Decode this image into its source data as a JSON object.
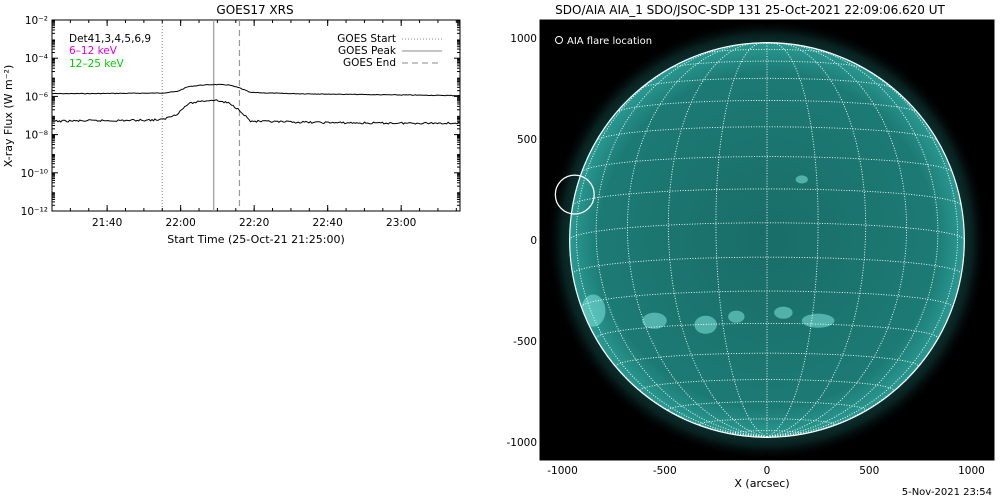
{
  "stamp": "5-Nov-2021 23:54",
  "chart_data": [
    {
      "type": "line",
      "title": "GOES17 XRS",
      "xlabel": "Start Time (25-Oct-21 21:25:00)",
      "ylabel": "X-ray Flux (W m⁻²)",
      "yscale": "log",
      "ylim": [
        "1e-12",
        "1e-2"
      ],
      "xlim": [
        "21:25",
        "23:16"
      ],
      "x_ticks": [
        "21:40",
        "22:00",
        "22:20",
        "22:40",
        "23:00"
      ],
      "y_ticks": [
        {
          "value": "1e-2",
          "label": "10⁻²"
        },
        {
          "value": "1e-4",
          "label": "10⁻⁴"
        },
        {
          "value": "1e-6",
          "label": "10⁻⁶"
        },
        {
          "value": "1e-8",
          "label": "10⁻⁸"
        },
        {
          "value": "1e-10",
          "label": "10⁻¹⁰"
        },
        {
          "value": "1e-12",
          "label": "10⁻¹²"
        }
      ],
      "grid": false,
      "annotations": {
        "detectors": "Det41,3,4,5,6,9",
        "band_low": "6–12 keV",
        "band_high": "12–25 keV",
        "band_low_color": "#e000e0",
        "band_high_color": "#00cc00"
      },
      "legend": {
        "placement": "top-right",
        "entries": [
          {
            "label": "GOES Start",
            "style": "dotted",
            "time": "21:55"
          },
          {
            "label": "GOES Peak",
            "style": "solid",
            "time": "22:09"
          },
          {
            "label": "GOES End",
            "style": "dashed",
            "time": "22:16"
          }
        ]
      },
      "series": [
        {
          "color": "#000000",
          "points": [
            [
              "21:25",
              "1.4e-6"
            ],
            [
              "21:35",
              "1.4e-6"
            ],
            [
              "21:45",
              "1.45e-6"
            ],
            [
              "21:55",
              "1.5e-6"
            ],
            [
              "21:59",
              "1.8e-6"
            ],
            [
              "22:02",
              "3.2e-6"
            ],
            [
              "22:05",
              "3.8e-6"
            ],
            [
              "22:09",
              "4.2e-6"
            ],
            [
              "22:13",
              "4.0e-6"
            ],
            [
              "22:16",
              "2.8e-6"
            ],
            [
              "22:19",
              "1.6e-6"
            ],
            [
              "22:30",
              "1.4e-6"
            ],
            [
              "22:50",
              "1.25e-6"
            ],
            [
              "23:16",
              "1.1e-6"
            ]
          ]
        },
        {
          "color": "#000000",
          "points": [
            [
              "21:25",
              "5e-8"
            ],
            [
              "21:35",
              "5.3e-8"
            ],
            [
              "21:45",
              "5.5e-8"
            ],
            [
              "21:55",
              "6e-8"
            ],
            [
              "21:59",
              "1.2e-7"
            ],
            [
              "22:02",
              "4e-7"
            ],
            [
              "22:05",
              "5.5e-7"
            ],
            [
              "22:09",
              "6.5e-7"
            ],
            [
              "22:13",
              "4.5e-7"
            ],
            [
              "22:16",
              "2e-7"
            ],
            [
              "22:19",
              "5e-8"
            ],
            [
              "22:30",
              "4.5e-8"
            ],
            [
              "22:50",
              "4e-8"
            ],
            [
              "23:16",
              "4e-8"
            ]
          ]
        }
      ]
    },
    {
      "type": "image",
      "title": "SDO/AIA AIA_1 SDO/JSOC-SDP 131 25-Oct-2021 22:09:06.620 UT",
      "xlabel": "X (arcsec)",
      "ylabel": "",
      "xlim": [
        -1110,
        1110
      ],
      "ylim": [
        -1090,
        1090
      ],
      "x_ticks": [
        -1000,
        -500,
        0,
        500,
        1000
      ],
      "y_ticks": [
        -1000,
        -500,
        0,
        500,
        1000
      ],
      "background_color": "#000000",
      "disk_color": "#1a6d68",
      "grid_color": "#ffffff",
      "legend_text": "AIA flare location",
      "flare_location": {
        "x": -940,
        "y": 225,
        "radius": 95
      },
      "solar_radius": 965
    }
  ]
}
